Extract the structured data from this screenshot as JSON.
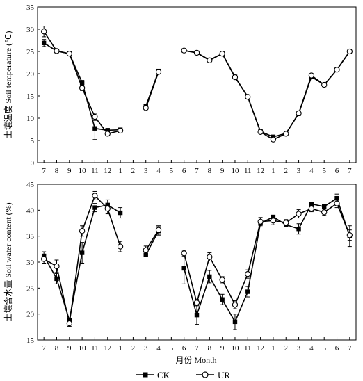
{
  "chart_data": [
    {
      "type": "line",
      "ylabel": "土壤温度 Soil temperature (℃)",
      "ylim": [
        0,
        35
      ],
      "yticks": [
        0,
        5,
        10,
        15,
        20,
        25,
        30,
        35
      ],
      "categories": [
        "7",
        "8",
        "9",
        "10",
        "11",
        "12",
        "1",
        "2",
        "3",
        "4",
        "5",
        "6",
        "7",
        "8",
        "9",
        "10",
        "11",
        "12",
        "1",
        "2",
        "3",
        "4",
        "5",
        "6",
        "7"
      ],
      "series": [
        {
          "name": "CK",
          "marker": "filled-square",
          "values": [
            26.9,
            25.1,
            24.5,
            18.0,
            7.7,
            7.3,
            7.4,
            null,
            12.7,
            20.6,
            null,
            25.2,
            24.7,
            23.1,
            24.5,
            19.3,
            14.8,
            7.0,
            5.8,
            6.6,
            11.0,
            19.3,
            17.5,
            20.9,
            25.0
          ],
          "errors": [
            0.8,
            0.3,
            0.3,
            0.5,
            2.5,
            0.3,
            0.3,
            null,
            0.4,
            0.4,
            null,
            0.3,
            0.3,
            0.3,
            0.3,
            0.3,
            0.3,
            0.3,
            0.4,
            0.3,
            0.4,
            0.4,
            0.3,
            0.3,
            0.3
          ]
        },
        {
          "name": "UR",
          "marker": "open-circle",
          "values": [
            29.5,
            25.1,
            24.5,
            16.8,
            10.3,
            6.5,
            7.2,
            null,
            12.3,
            20.4,
            null,
            25.2,
            24.7,
            23.0,
            24.5,
            19.2,
            14.8,
            6.9,
            5.2,
            6.5,
            11.1,
            19.6,
            17.5,
            20.9,
            25.0
          ],
          "errors": [
            1.2,
            0.3,
            0.4,
            0.6,
            0.8,
            0.4,
            0.3,
            null,
            0.3,
            0.3,
            null,
            0.3,
            0.3,
            0.3,
            0.5,
            0.3,
            0.3,
            0.3,
            0.4,
            0.3,
            0.3,
            0.4,
            0.3,
            0.3,
            0.3
          ]
        }
      ]
    },
    {
      "type": "line",
      "ylabel": "土壤含水量 Soil water content (%)",
      "xlabel": "月份 Month",
      "ylim": [
        15,
        45
      ],
      "yticks": [
        15,
        20,
        25,
        30,
        35,
        40,
        45
      ],
      "categories": [
        "7",
        "8",
        "9",
        "10",
        "11",
        "12",
        "1",
        "2",
        "3",
        "4",
        "5",
        "6",
        "7",
        "8",
        "9",
        "10",
        "11",
        "12",
        "1",
        "2",
        "3",
        "4",
        "5",
        "6",
        "7"
      ],
      "series": [
        {
          "name": "CK",
          "marker": "filled-square",
          "values": [
            31.2,
            26.8,
            18.8,
            31.8,
            40.5,
            41.0,
            39.5,
            null,
            31.4,
            36.0,
            null,
            28.8,
            19.8,
            27.2,
            22.8,
            18.5,
            24.3,
            37.5,
            38.7,
            37.2,
            36.4,
            41.2,
            40.7,
            42.3,
            35.0
          ],
          "errors": [
            0.8,
            1.0,
            0.5,
            2.0,
            0.8,
            1.0,
            1.0,
            null,
            0.3,
            0.8,
            null,
            3.0,
            1.8,
            1.2,
            1.0,
            1.5,
            1.0,
            0.5,
            0.5,
            0.8,
            1.0,
            0.5,
            0.5,
            0.8,
            2.0
          ],
          "error_visible": [
            true,
            true,
            false,
            true,
            true,
            true,
            true,
            null,
            false,
            true,
            null,
            true,
            true,
            true,
            true,
            true,
            true,
            false,
            false,
            false,
            true,
            false,
            false,
            true,
            true
          ]
        },
        {
          "name": "UR",
          "marker": "open-circle",
          "values": [
            30.6,
            29.2,
            18.2,
            36.0,
            42.8,
            40.3,
            33.0,
            null,
            32.3,
            36.2,
            null,
            31.7,
            22.2,
            31.0,
            26.6,
            21.8,
            27.7,
            37.8,
            38.0,
            37.6,
            39.3,
            40.3,
            39.6,
            41.3,
            35.2
          ],
          "errors": [
            0.8,
            1.2,
            0.6,
            1.0,
            0.8,
            1.0,
            1.0,
            null,
            0.8,
            0.8,
            null,
            0.6,
            0.6,
            0.8,
            0.6,
            0.8,
            0.8,
            0.8,
            0.8,
            0.6,
            0.8,
            0.6,
            0.6,
            0.8,
            1.0
          ],
          "error_visible": [
            true,
            true,
            true,
            true,
            true,
            true,
            true,
            null,
            true,
            true,
            null,
            true,
            true,
            true,
            true,
            true,
            true,
            true,
            true,
            true,
            true,
            true,
            true,
            true,
            true
          ]
        }
      ]
    }
  ],
  "legend": {
    "placement": "bottom-center",
    "items": [
      "CK",
      "UR"
    ]
  }
}
